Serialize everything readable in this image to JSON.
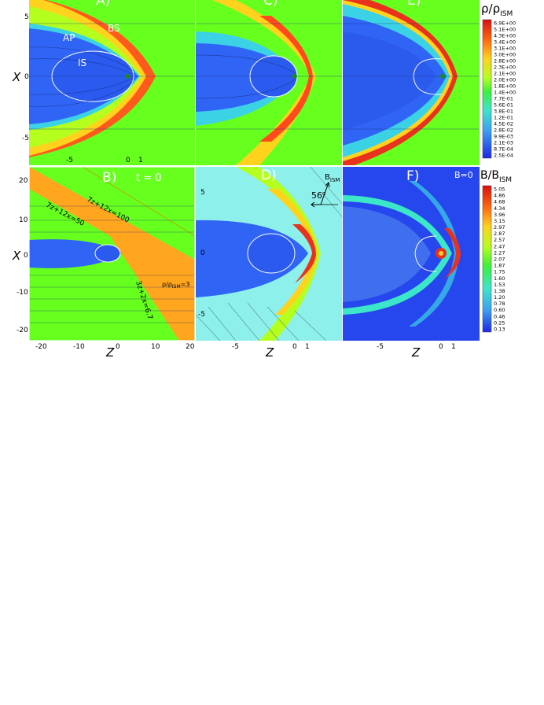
{
  "panels": [
    {
      "id": "A",
      "label": "A)"
    },
    {
      "id": "C",
      "label": "C)"
    },
    {
      "id": "E",
      "label": "E)"
    },
    {
      "id": "B",
      "label": "B)",
      "tag": "t = 0"
    },
    {
      "id": "D",
      "label": "D)"
    },
    {
      "id": "F",
      "label": "F)",
      "tag": "B=0"
    }
  ],
  "regions": {
    "bs": "BS",
    "ap": "AP",
    "is": "IS"
  },
  "axes": {
    "x_label": "X",
    "z_label": "Z",
    "top_x_ticks": [
      "5",
      "0",
      "-5"
    ],
    "top_z_ticks": [
      "-5",
      "0",
      "1"
    ],
    "b_x_ticks": [
      "20",
      "10",
      "0",
      "-10",
      "-20"
    ],
    "b_z_ticks": [
      "-20",
      "-10",
      "0",
      "10",
      "20"
    ],
    "d_x_ticks": [
      "5",
      "0",
      "-5"
    ],
    "d_z_ticks": [
      "-5",
      "0",
      "1"
    ],
    "f_z_ticks": [
      "-5",
      "0",
      "1"
    ]
  },
  "annotations": {
    "line1": "7z+12x=50",
    "line2": "7z+12x=100",
    "line3": "3z+2x=6.7",
    "rho_ratio": "ρ/ρ",
    "rho_ratio_sub": "ISM",
    "rho_ratio_val": "=3",
    "field_B": "B",
    "field_B_sub": "ISM",
    "angle": "56",
    "angle_unit": "o"
  },
  "colorbar_rho": {
    "title": "ρ/ρ",
    "title_sub": "ISM",
    "labels": [
      "6.9E+00",
      "5.1E+00",
      "4.3E+00",
      "3.4E+00",
      "3.1E+00",
      "3.0E+00",
      "2.8E+00",
      "2.3E+00",
      "2.1E+00",
      "2.0E+00",
      "1.8E+00",
      "1.4E+00",
      "7.7E-01",
      "5.6E-01",
      "3.8E-01",
      "1.2E-01",
      "4.5E-02",
      "2.8E-02",
      "9.9E-03",
      "2.1E-03",
      "8.7E-04",
      "2.5E-04"
    ]
  },
  "colorbar_b": {
    "title": "B/B",
    "title_sub": "ISM",
    "labels": [
      "5.05",
      "4.86",
      "4.68",
      "4.34",
      "3.96",
      "3.15",
      "2.97",
      "2.87",
      "2.57",
      "2.47",
      "2.27",
      "2.07",
      "1.87",
      "1.75",
      "1.60",
      "1.53",
      "1.38",
      "1.20",
      "0.78",
      "0.60",
      "0.46",
      "0.25",
      "0.13"
    ]
  },
  "colors": {
    "ism_green": "#66ff1e",
    "cavity_blue": "#2f64f5",
    "sheath_cyan": "#4fd0d8",
    "bow_red": "#e8321e",
    "band_orange": "#ffa51e",
    "panel_d_bg": "#8ef0ea",
    "panel_f_bg": "#2646ee"
  }
}
